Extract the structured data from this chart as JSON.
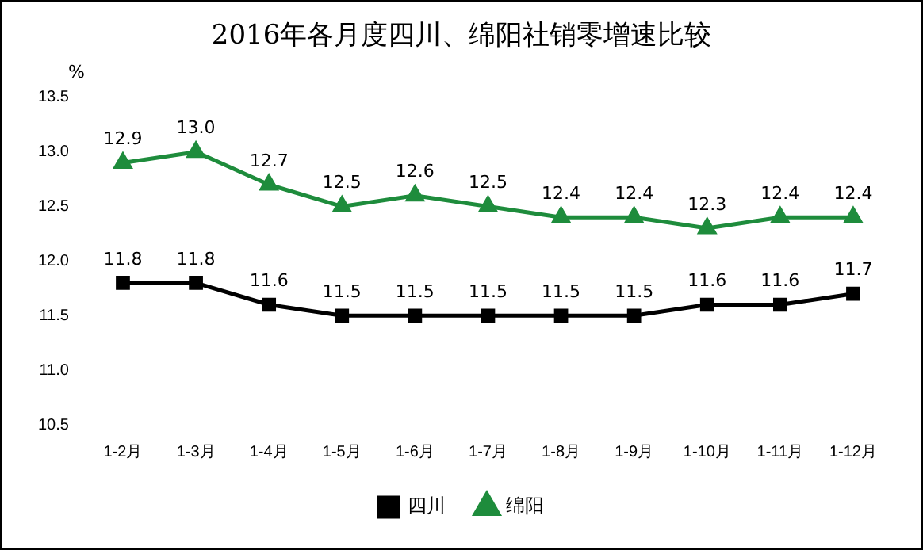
{
  "chart_data": {
    "type": "line",
    "title": "2016年各月度四川、绵阳社销零增速比较",
    "ylabel": "%",
    "categories": [
      "1-2月",
      "1-3月",
      "1-4月",
      "1-5月",
      "1-6月",
      "1-7月",
      "1-8月",
      "1-9月",
      "1-10月",
      "1-11月",
      "1-12月"
    ],
    "series": [
      {
        "name": "四川",
        "color": "#000000",
        "marker": "square",
        "values": [
          11.8,
          11.8,
          11.6,
          11.5,
          11.5,
          11.5,
          11.5,
          11.5,
          11.6,
          11.6,
          11.7
        ],
        "value_labels": [
          "11.8",
          "11.8",
          "11.6",
          "11.5",
          "11.5",
          "11.5",
          "11.5",
          "11.5",
          "11.6",
          "11.6",
          "11.7"
        ]
      },
      {
        "name": "绵阳",
        "color": "#1e8c3c",
        "marker": "triangle",
        "values": [
          12.9,
          13.0,
          12.7,
          12.5,
          12.6,
          12.5,
          12.4,
          12.4,
          12.3,
          12.4,
          12.4
        ],
        "value_labels": [
          "12.9",
          "13.0",
          "12.7",
          "12.5",
          "12.6",
          "12.5",
          "12.4",
          "12.4",
          "12.3",
          "12.4",
          "12.4"
        ]
      }
    ],
    "ylim": [
      10.5,
      13.5
    ],
    "yticks": [
      {
        "value": 10.5,
        "label": "10.5"
      },
      {
        "value": 11,
        "label": "11.0"
      },
      {
        "value": 11.5,
        "label": "11.5"
      },
      {
        "value": 12,
        "label": "12.0"
      },
      {
        "value": 12.5,
        "label": "12.5"
      },
      {
        "value": 13,
        "label": "13.0"
      },
      {
        "value": 13.5,
        "label": "13.5"
      }
    ],
    "grid": false,
    "legend": "bottom",
    "line_style": "solid"
  }
}
